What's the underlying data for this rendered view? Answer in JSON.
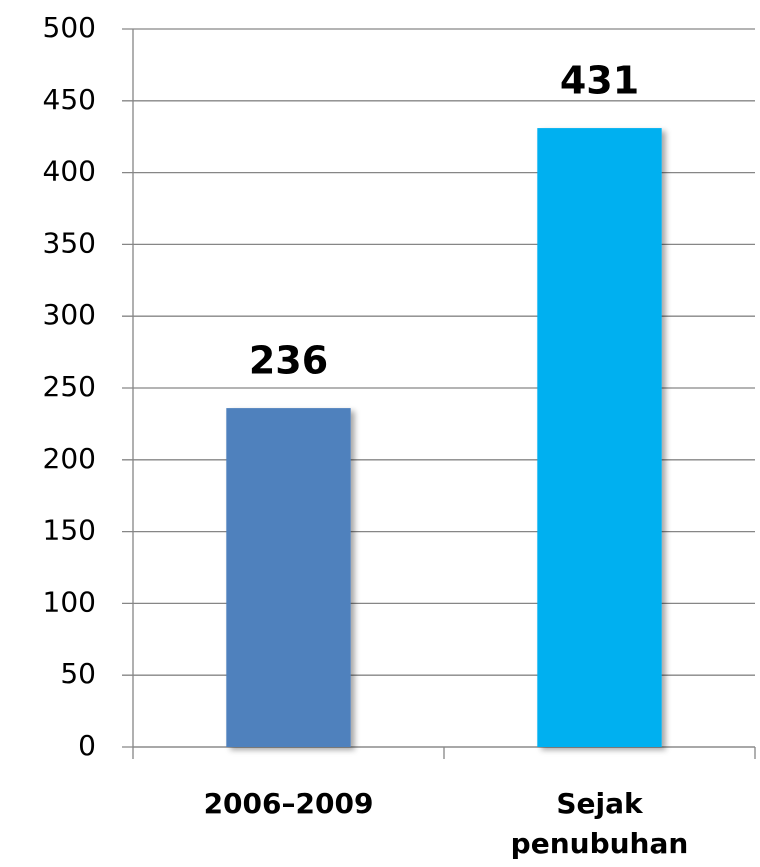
{
  "chart_data": {
    "type": "bar",
    "categories": [
      "2006–2009",
      "Sejak penubuhan"
    ],
    "values": [
      236,
      431
    ],
    "colors": [
      "#4f81bd",
      "#00b0f0"
    ],
    "ylim": [
      0,
      500
    ],
    "yticks": [
      0,
      50,
      100,
      150,
      200,
      250,
      300,
      350,
      400,
      450,
      500
    ],
    "grid": true,
    "data_labels": true
  }
}
